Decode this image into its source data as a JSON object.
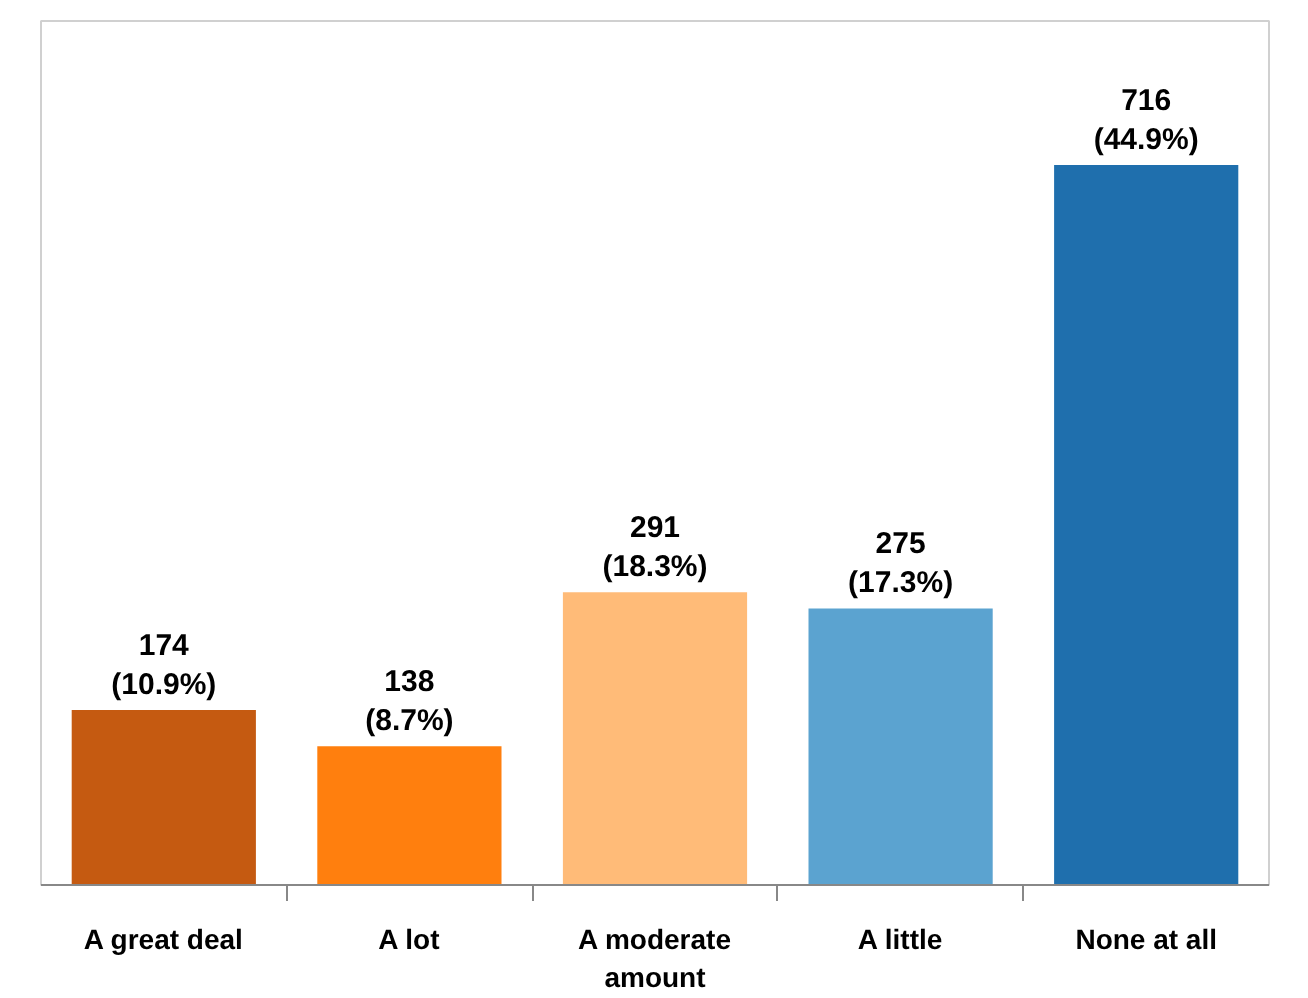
{
  "chart_data": {
    "type": "bar",
    "categories": [
      "A great deal",
      "A lot",
      "A moderate amount",
      "A little",
      "None at all"
    ],
    "values": [
      174,
      138,
      291,
      275,
      716
    ],
    "colors": [
      "#c55a11",
      "#ff7f0e",
      "#ffbb78",
      "#5ba3d0",
      "#1f6fad"
    ],
    "value_labels": [
      "174\n(10.9%)",
      "138\n(8.7%)",
      "291\n(18.3%)",
      "275\n(17.3%)",
      "716\n(44.9%)"
    ],
    "grid": false,
    "tick_labels": "x"
  }
}
